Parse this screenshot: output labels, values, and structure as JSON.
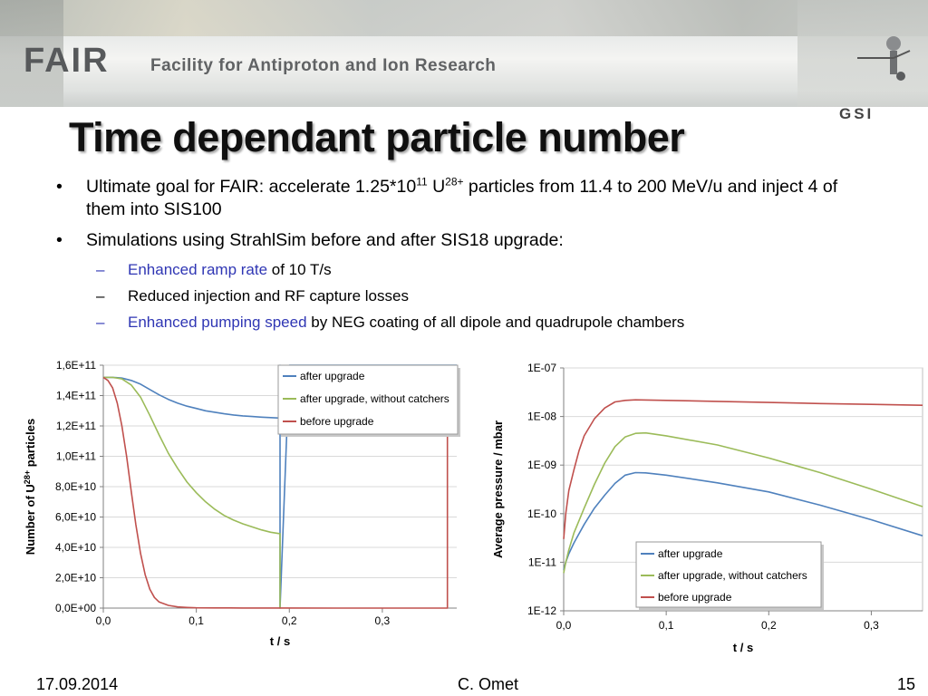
{
  "header": {
    "logo_text": "FAIR",
    "logo_subtitle": "Facility for Antiproton and Ion Research",
    "org_logo": "GSI",
    "colors": {
      "banner": "#e6e8e6",
      "logo": "#57595b"
    }
  },
  "slide": {
    "title": "Time dependant particle number",
    "bullets": [
      {
        "parts": [
          {
            "text": "Ultimate goal for FAIR: accelerate 1.25*10"
          },
          {
            "text": "11",
            "sup": true
          },
          {
            "text": " U"
          },
          {
            "text": "28+",
            "sup": true
          },
          {
            "text": " particles from 11.4 to 200 MeV/u and inject 4 of them into SIS100"
          }
        ]
      },
      {
        "parts": [
          {
            "text": "Simulations using StrahlSim before and after SIS18 upgrade:"
          }
        ],
        "sub": [
          {
            "parts": [
              {
                "text": "Enhanced ramp rate",
                "hl": true
              },
              {
                "text": " of 10 T/s"
              }
            ]
          },
          {
            "parts": [
              {
                "text": "Reduced injection and RF capture losses"
              }
            ]
          },
          {
            "parts": [
              {
                "text": "Enhanced pumping speed",
                "hl": true
              },
              {
                "text": " by NEG coating of all dipole and quadrupole chambers"
              }
            ]
          }
        ]
      }
    ],
    "highlight_color": "#2f36b4"
  },
  "footer": {
    "date": "17.09.2014",
    "author": "C. Omet",
    "page": "15"
  },
  "chart_data": [
    {
      "type": "line",
      "xlabel": "t / s",
      "ylabel": "Number of U28+ particles",
      "xlim": [
        0,
        0.38
      ],
      "ylim": [
        0,
        160000000000.0
      ],
      "xticks": [
        0,
        0.1,
        0.2,
        0.3
      ],
      "xtick_labels": [
        "0,0",
        "0,1",
        "0,2",
        "0,3"
      ],
      "yticks": [
        0,
        20000000000.0,
        40000000000.0,
        60000000000.0,
        80000000000.0,
        100000000000.0,
        120000000000.0,
        140000000000.0,
        160000000000.0
      ],
      "ytick_labels": [
        "0,0E+00",
        "2,0E+10",
        "4,0E+10",
        "6,0E+10",
        "8,0E+10",
        "1,0E+11",
        "1,2E+11",
        "1,4E+11",
        "1,6E+11"
      ],
      "grid": "horizontal",
      "legend": "top-right",
      "series": [
        {
          "name": "after upgrade",
          "color": "#4f81bd",
          "x": [
            0,
            0.01,
            0.02,
            0.03,
            0.04,
            0.05,
            0.06,
            0.07,
            0.08,
            0.09,
            0.1,
            0.11,
            0.12,
            0.13,
            0.14,
            0.15,
            0.16,
            0.17,
            0.18,
            0.19,
            0.19,
            0.19,
            0.2,
            0.3,
            0.38
          ],
          "y": [
            152000000000.0,
            152000000000.0,
            151500000000.0,
            150000000000.0,
            147500000000.0,
            144000000000.0,
            140500000000.0,
            137500000000.0,
            135000000000.0,
            133000000000.0,
            131500000000.0,
            130000000000.0,
            129000000000.0,
            128000000000.0,
            127200000000.0,
            126600000000.0,
            126200000000.0,
            125800000000.0,
            125500000000.0,
            125200000000.0,
            160000000000.0,
            0,
            160000000000.0,
            160000000000.0,
            160000000000.0
          ]
        },
        {
          "name": "after upgrade, without catchers",
          "color": "#9bbb59",
          "x": [
            0,
            0.01,
            0.02,
            0.03,
            0.04,
            0.05,
            0.06,
            0.07,
            0.08,
            0.09,
            0.1,
            0.11,
            0.12,
            0.13,
            0.14,
            0.15,
            0.16,
            0.17,
            0.18,
            0.19,
            0.19
          ],
          "y": [
            152000000000.0,
            152000000000.0,
            151000000000.0,
            147000000000.0,
            139000000000.0,
            127000000000.0,
            114000000000.0,
            102000000000.0,
            92000000000.0,
            83000000000.0,
            76000000000.0,
            70000000000.0,
            65000000000.0,
            61000000000.0,
            58000000000.0,
            55500000000.0,
            53500000000.0,
            51500000000.0,
            50000000000.0,
            49000000000.0,
            0
          ]
        },
        {
          "name": "before upgrade",
          "color": "#c0504d",
          "x": [
            0,
            0.005,
            0.01,
            0.015,
            0.02,
            0.025,
            0.03,
            0.035,
            0.04,
            0.045,
            0.05,
            0.055,
            0.06,
            0.07,
            0.08,
            0.09,
            0.1,
            0.12,
            0.15,
            0.2,
            0.25,
            0.3,
            0.37,
            0.37
          ],
          "y": [
            152000000000.0,
            150000000000.0,
            145000000000.0,
            135000000000.0,
            120000000000.0,
            100000000000.0,
            77000000000.0,
            55000000000.0,
            36000000000.0,
            22000000000.0,
            12500000000.0,
            7000000000.0,
            4000000000.0,
            1800000000.0,
            800000000.0,
            400000000.0,
            200000000.0,
            100000000.0,
            50000000.0,
            30000000.0,
            20000000.0,
            10000000.0,
            5000000.0,
            160000000000.0
          ]
        }
      ]
    },
    {
      "type": "line",
      "xlabel": "t / s",
      "ylabel": "Average pressure / mbar",
      "xlim": [
        0,
        0.35
      ],
      "ylim": [
        1e-12,
        1e-07
      ],
      "yscale": "log",
      "xticks": [
        0,
        0.1,
        0.2,
        0.3
      ],
      "xtick_labels": [
        "0,0",
        "0,1",
        "0,2",
        "0,3"
      ],
      "yticks": [
        1e-12,
        1e-11,
        1e-10,
        1e-09,
        1e-08,
        1e-07
      ],
      "ytick_labels": [
        "1E-12",
        "1E-11",
        "1E-10",
        "1E-09",
        "1E-08",
        "1E-07"
      ],
      "grid": "horizontal",
      "legend": "bottom-right",
      "series": [
        {
          "name": "after upgrade",
          "color": "#4f81bd",
          "x": [
            0,
            0.002,
            0.005,
            0.01,
            0.02,
            0.03,
            0.04,
            0.05,
            0.06,
            0.07,
            0.08,
            0.1,
            0.15,
            0.2,
            0.25,
            0.3,
            0.35
          ],
          "y": [
            7e-12,
            1e-11,
            1.5e-11,
            2.5e-11,
            6e-11,
            1.3e-10,
            2.4e-10,
            4.2e-10,
            6.2e-10,
            7e-10,
            6.9e-10,
            6.2e-10,
            4.3e-10,
            2.8e-10,
            1.5e-10,
            7.5e-11,
            3.5e-11
          ]
        },
        {
          "name": "after upgrade, without catchers",
          "color": "#9bbb59",
          "x": [
            0,
            0.002,
            0.005,
            0.01,
            0.02,
            0.03,
            0.04,
            0.05,
            0.06,
            0.07,
            0.08,
            0.1,
            0.15,
            0.2,
            0.25,
            0.3,
            0.35
          ],
          "y": [
            6e-12,
            1e-11,
            1.8e-11,
            4e-11,
            1.3e-10,
            4e-10,
            1.1e-09,
            2.4e-09,
            3.8e-09,
            4.5e-09,
            4.6e-09,
            4e-09,
            2.6e-09,
            1.4e-09,
            7e-10,
            3.2e-10,
            1.4e-10
          ]
        },
        {
          "name": "before upgrade",
          "color": "#c0504d",
          "x": [
            0,
            0.002,
            0.005,
            0.01,
            0.015,
            0.02,
            0.03,
            0.04,
            0.05,
            0.06,
            0.07,
            0.1,
            0.15,
            0.2,
            0.25,
            0.3,
            0.35
          ],
          "y": [
            3e-11,
            1e-10,
            3e-10,
            8e-10,
            2e-09,
            4e-09,
            9e-09,
            1.5e-08,
            2e-08,
            2.15e-08,
            2.2e-08,
            2.15e-08,
            2.05e-08,
            1.95e-08,
            1.85e-08,
            1.78e-08,
            1.7e-08
          ]
        }
      ]
    }
  ]
}
